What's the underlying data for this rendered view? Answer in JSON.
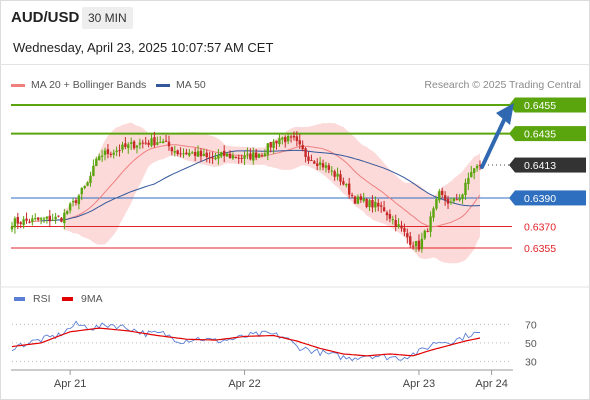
{
  "header": {
    "symbol": "AUD/USD",
    "timeframe": "30 MIN",
    "datetime": "Wednesday, April 23, 2025 10:07:57 AM CET"
  },
  "legend": {
    "ma20": "MA 20 + Bollinger Bands",
    "ma20_color": "#f08080",
    "ma50": "MA 50",
    "ma50_color": "#34579a"
  },
  "credit": "Research © 2025 Trading Central",
  "rsi_legend": {
    "rsi": "RSI",
    "rsi_color": "#5b7fd4",
    "ma": "9MA",
    "ma_color": "#e00000"
  },
  "chart_data": [
    {
      "type": "candlestick",
      "ylim": [
        0.6334,
        0.6462
      ],
      "x_tick_labels": [
        "Apr 21",
        "Apr 22",
        "Apr 23",
        "Apr 24"
      ],
      "bar_count": 162,
      "x_ticks_at_bar": [
        20,
        80,
        140,
        165
      ],
      "close_path_anchors": [
        [
          0,
          0.6373
        ],
        [
          6,
          0.6374
        ],
        [
          12,
          0.6375
        ],
        [
          17,
          0.6376
        ],
        [
          21,
          0.6386
        ],
        [
          26,
          0.64
        ],
        [
          30,
          0.642
        ],
        [
          37,
          0.6424
        ],
        [
          43,
          0.6428
        ],
        [
          51,
          0.643
        ],
        [
          57,
          0.6422
        ],
        [
          63,
          0.6421
        ],
        [
          68,
          0.6417
        ],
        [
          73,
          0.642
        ],
        [
          80,
          0.6418
        ],
        [
          86,
          0.6422
        ],
        [
          92,
          0.6432
        ],
        [
          97,
          0.643
        ],
        [
          101,
          0.642
        ],
        [
          107,
          0.6413
        ],
        [
          113,
          0.6403
        ],
        [
          118,
          0.6389
        ],
        [
          123,
          0.6386
        ],
        [
          128,
          0.6382
        ],
        [
          133,
          0.637
        ],
        [
          137,
          0.636
        ],
        [
          140,
          0.6356
        ],
        [
          143,
          0.6369
        ],
        [
          147,
          0.6392
        ],
        [
          151,
          0.6386
        ],
        [
          155,
          0.6393
        ],
        [
          158,
          0.6409
        ],
        [
          162,
          0.6413
        ]
      ],
      "levels": [
        {
          "value": 0.6455,
          "label": "0.6455",
          "color": "#5aa50e",
          "style": "resistance"
        },
        {
          "value": 0.6435,
          "label": "0.6435",
          "color": "#5aa50e",
          "style": "resistance"
        },
        {
          "value": 0.6413,
          "label": "0.6413",
          "color": "#333333",
          "style": "last"
        },
        {
          "value": 0.639,
          "label": "0.6390",
          "color": "#2f6fc0",
          "style": "pivot"
        },
        {
          "value": 0.637,
          "label": "0.6370",
          "color": "#e0242b",
          "style": "support"
        },
        {
          "value": 0.6355,
          "label": "0.6355",
          "color": "#e0242b",
          "style": "support"
        }
      ],
      "projection": {
        "from": 0.6413,
        "to": 0.6455,
        "color": "#2f67b1"
      },
      "bollinger_fill": "#fbd3d3",
      "candle_up": "#5aa50e",
      "candle_down": "#c62828"
    },
    {
      "type": "line",
      "title": "RSI",
      "series": [
        {
          "name": "RSI"
        },
        {
          "name": "9MA"
        }
      ],
      "ylim": [
        25,
        78
      ],
      "y_ticks": [
        70,
        50,
        30
      ],
      "rsi_anchors": [
        [
          0,
          45
        ],
        [
          8,
          52
        ],
        [
          16,
          58
        ],
        [
          22,
          70
        ],
        [
          28,
          66
        ],
        [
          34,
          70
        ],
        [
          40,
          66
        ],
        [
          46,
          60
        ],
        [
          52,
          60
        ],
        [
          58,
          52
        ],
        [
          64,
          55
        ],
        [
          70,
          52
        ],
        [
          76,
          54
        ],
        [
          82,
          58
        ],
        [
          88,
          60
        ],
        [
          94,
          56
        ],
        [
          98,
          46
        ],
        [
          104,
          41
        ],
        [
          110,
          37
        ],
        [
          116,
          33
        ],
        [
          122,
          37
        ],
        [
          128,
          35
        ],
        [
          134,
          34
        ],
        [
          140,
          40
        ],
        [
          146,
          51
        ],
        [
          152,
          52
        ],
        [
          158,
          60
        ],
        [
          162,
          60
        ]
      ],
      "ma_anchors": [
        [
          0,
          46
        ],
        [
          10,
          50
        ],
        [
          20,
          62
        ],
        [
          30,
          66
        ],
        [
          40,
          63
        ],
        [
          50,
          58
        ],
        [
          60,
          54
        ],
        [
          70,
          53
        ],
        [
          80,
          57
        ],
        [
          90,
          58
        ],
        [
          98,
          52
        ],
        [
          106,
          44
        ],
        [
          114,
          38
        ],
        [
          122,
          36
        ],
        [
          130,
          38
        ],
        [
          138,
          36
        ],
        [
          144,
          42
        ],
        [
          150,
          47
        ],
        [
          156,
          52
        ],
        [
          162,
          56
        ]
      ]
    }
  ]
}
